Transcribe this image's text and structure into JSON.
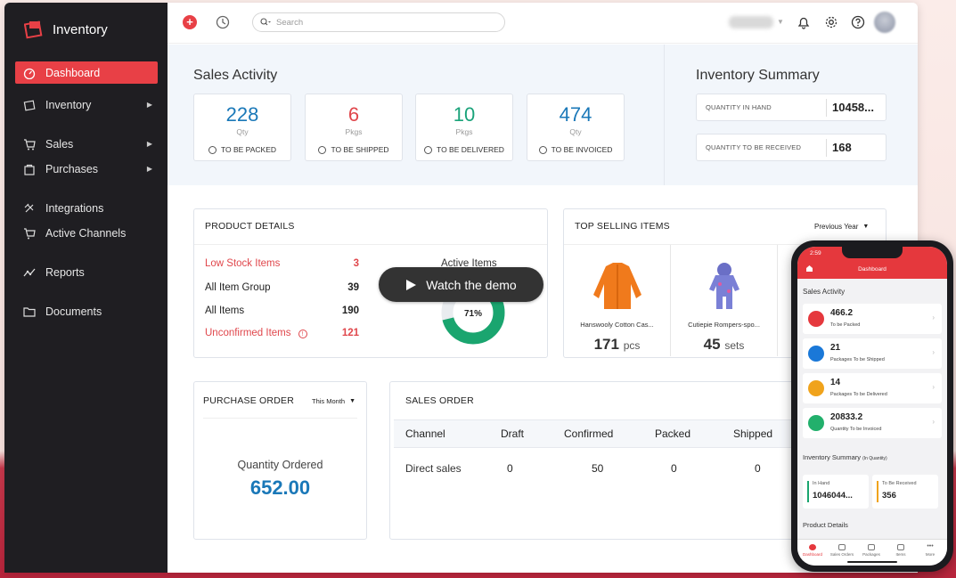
{
  "app": {
    "name": "Inventory"
  },
  "sidebar": {
    "items": [
      {
        "label": "Dashboard",
        "icon": "dashboard-icon",
        "active": true
      },
      {
        "label": "Inventory",
        "icon": "inventory-icon",
        "has_submenu": true
      },
      {
        "label": "Sales",
        "icon": "sales-icon",
        "has_submenu": true
      },
      {
        "label": "Purchases",
        "icon": "purchases-icon",
        "has_submenu": true
      },
      {
        "label": "Integrations",
        "icon": "integrations-icon"
      },
      {
        "label": "Active Channels",
        "icon": "channels-icon"
      },
      {
        "label": "Reports",
        "icon": "reports-icon"
      },
      {
        "label": "Documents",
        "icon": "documents-icon"
      }
    ]
  },
  "topbar": {
    "search_placeholder": "Search"
  },
  "sales_activity": {
    "title": "Sales Activity",
    "cards": [
      {
        "value": "228",
        "unit": "Qty",
        "label": "TO BE PACKED",
        "color": "#1a78b8"
      },
      {
        "value": "6",
        "unit": "Pkgs",
        "label": "TO BE SHIPPED",
        "color": "#e0474c"
      },
      {
        "value": "10",
        "unit": "Pkgs",
        "label": "TO BE DELIVERED",
        "color": "#1aa37a"
      },
      {
        "value": "474",
        "unit": "Qty",
        "label": "TO BE INVOICED",
        "color": "#1a78b8"
      }
    ]
  },
  "inventory_summary": {
    "title": "Inventory Summary",
    "in_hand_label": "QUANTITY IN HAND",
    "in_hand_value": "10458...",
    "to_receive_label": "QUANTITY TO BE RECEIVED",
    "to_receive_value": "168"
  },
  "product_details": {
    "title": "PRODUCT DETAILS",
    "rows": [
      {
        "label": "Low Stock Items",
        "value": "3",
        "alert": true
      },
      {
        "label": "All Item Group",
        "value": "39"
      },
      {
        "label": "All Items",
        "value": "190"
      },
      {
        "label": "Unconfirmed Items",
        "value": "121",
        "alert": true
      }
    ],
    "active_items_label": "Active Items",
    "active_percent_label": "71%",
    "active_fraction": 0.71
  },
  "watch_demo": {
    "label": "Watch the demo"
  },
  "top_selling": {
    "title": "TOP SELLING ITEMS",
    "period": "Previous Year",
    "items": [
      {
        "name": "Hanswooly Cotton Cas...",
        "qty": "171",
        "unit": "pcs"
      },
      {
        "name": "Cutiepie Rompers-spo...",
        "qty": "45",
        "unit": "sets"
      }
    ]
  },
  "purchase_order": {
    "title": "PURCHASE ORDER",
    "period": "This Month",
    "qty_label": "Quantity Ordered",
    "qty_value": "652.00"
  },
  "sales_order": {
    "title": "SALES ORDER",
    "columns": [
      "Channel",
      "Draft",
      "Confirmed",
      "Packed",
      "Shipped"
    ],
    "rows": [
      [
        "Direct sales",
        "0",
        "50",
        "0",
        "0"
      ]
    ]
  },
  "phone": {
    "time": "2:59",
    "title": "Dashboard",
    "sales_activity_title": "Sales Activity",
    "cards": [
      {
        "value": "466.2",
        "label": "To be Packed",
        "color": "#e5383d"
      },
      {
        "value": "21",
        "label": "Packages To be Shipped",
        "color": "#1a78d8"
      },
      {
        "value": "14",
        "label": "Packages To be Delivered",
        "color": "#f0a31c"
      },
      {
        "value": "20833.2",
        "label": "Quantity To be Invoiced",
        "color": "#22b06c"
      }
    ],
    "inv_title": "Inventory Summary",
    "inv_subtitle": "(In Quantity)",
    "in_hand_label": "In Hand",
    "in_hand_value": "1046044...",
    "to_receive_label": "To Be Received",
    "to_receive_value": "356",
    "product_details_title": "Product Details",
    "nav": [
      "Dashboard",
      "Sales Orders",
      "Packages",
      "Items",
      "More"
    ]
  }
}
